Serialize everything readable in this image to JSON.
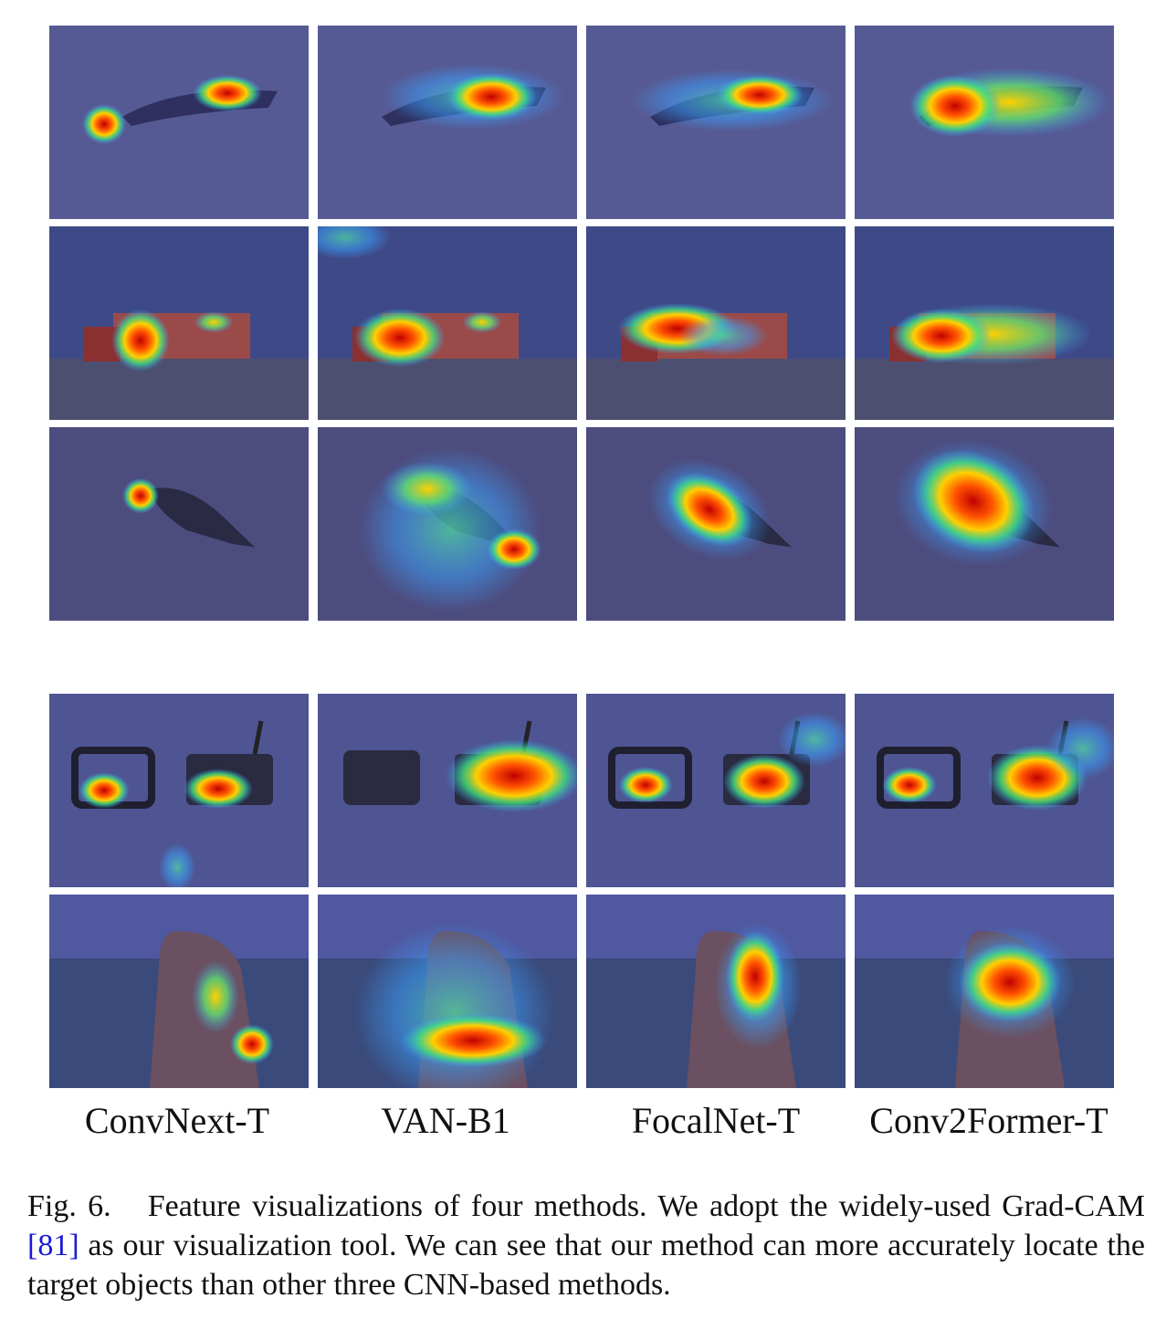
{
  "figure": {
    "columns": [
      "ConvNext-T",
      "VAN-B1",
      "FocalNet-T",
      "Conv2Former-T"
    ],
    "rows": [
      {
        "subject": "lizard-on-sand-icon",
        "tone": "#4d5290"
      },
      {
        "subject": "truck-icon",
        "tone": "#3d4a86"
      },
      {
        "subject": "bird-icon",
        "tone": "#4a4a7c"
      },
      {
        "subject": "router-icon",
        "tone": "#4d5492"
      },
      {
        "subject": "dog-icon",
        "tone": "#3b4a7c"
      }
    ],
    "heatmap_colors": {
      "hot": "#d00000",
      "warm": "#ffd000",
      "mid": "#40e080",
      "cool": "#3aa0ff"
    }
  },
  "caption": {
    "label": "Fig. 6.",
    "text_before_ref": "Feature visualizations of four methods. We adopt the widely-used Grad-CAM ",
    "ref": "[81]",
    "text_after_ref": " as our visualization tool. We can see that our method can more accurately locate the target objects than other three CNN-based methods."
  }
}
